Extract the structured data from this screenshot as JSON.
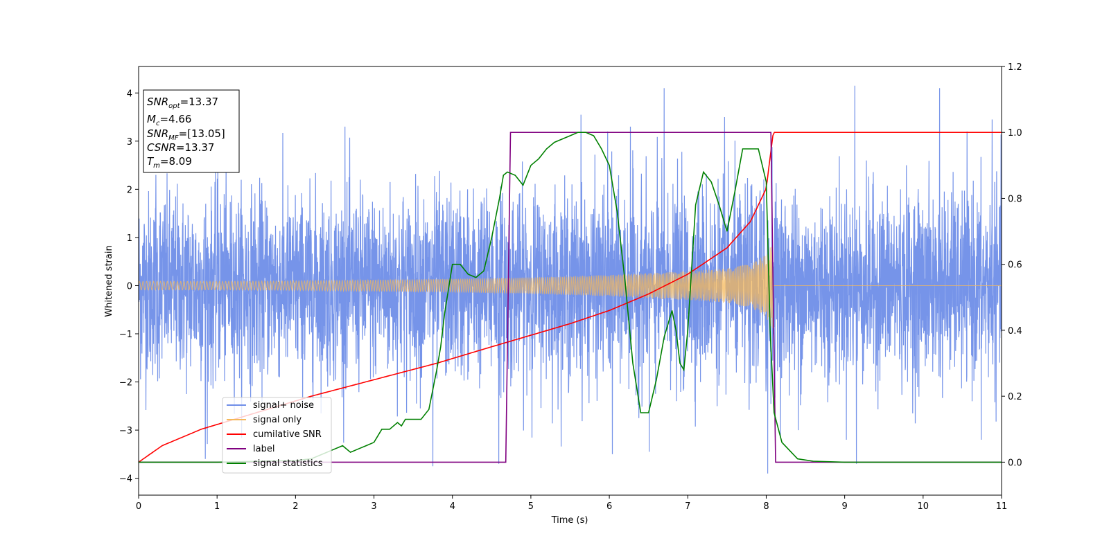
{
  "chart_data": {
    "type": "line",
    "xlabel": "Time (s)",
    "ylabel": "Whitened strain",
    "ylabel_right": "",
    "xlim": [
      0,
      11
    ],
    "ylim": [
      -4.35,
      4.55
    ],
    "ylim_right": [
      -0.1,
      1.2
    ],
    "xticks": [
      "0",
      "1",
      "2",
      "3",
      "4",
      "5",
      "6",
      "7",
      "8",
      "9",
      "10",
      "11"
    ],
    "yticks": [
      "−4",
      "−3",
      "−2",
      "−1",
      "0",
      "1",
      "2",
      "3",
      "4"
    ],
    "yticks_right": [
      "0.0",
      "0.2",
      "0.4",
      "0.6",
      "0.8",
      "1.0",
      "1.2"
    ],
    "grid": false,
    "legend_placement": "lower-left",
    "legend": [
      {
        "label": "signal+ noise",
        "color": "#6f8ee8"
      },
      {
        "label": "signal only",
        "color": "#f5b85a"
      },
      {
        "label": "cumilative SNR",
        "color": "#ff0000"
      },
      {
        "label": "label",
        "color": "#800080"
      },
      {
        "label": "signal statistics",
        "color": "#008000"
      }
    ],
    "info_box": {
      "snr_opt": {
        "base": "SNR",
        "sub": "opt",
        "value": "=13.37"
      },
      "mc": {
        "base": "M",
        "sub": "c",
        "value": "=4.66"
      },
      "snr_mf": {
        "base": "SNR",
        "sub": "MF",
        "value": "=[13.05]"
      },
      "csnr": {
        "base": "CSNR",
        "value": "=13.37"
      },
      "tm": {
        "base": "T",
        "sub": "m",
        "value": "=8.09"
      }
    },
    "series": [
      {
        "name": "signal+ noise",
        "axis": "left",
        "color": "#6f8ee8",
        "x_range": [
          0,
          11
        ],
        "noise_std": 1.0,
        "peaks": [
          [
            0.22,
            2.3
          ],
          [
            0.85,
            -3.6
          ],
          [
            1.01,
            3.0
          ],
          [
            2.63,
            3.3
          ],
          [
            3.75,
            -3.75
          ],
          [
            4.59,
            -3.7
          ],
          [
            5.64,
            3.55
          ],
          [
            5.98,
            3.2
          ],
          [
            6.04,
            -3.5
          ],
          [
            6.27,
            3.3
          ],
          [
            6.51,
            -3.45
          ],
          [
            6.7,
            4.1
          ],
          [
            7.47,
            3.5
          ],
          [
            8.02,
            -3.9
          ],
          [
            8.41,
            -3.0
          ],
          [
            9.13,
            4.15
          ],
          [
            9.15,
            -3.7
          ],
          [
            10.21,
            4.1
          ],
          [
            10.74,
            -3.2
          ],
          [
            10.88,
            3.45
          ]
        ]
      },
      {
        "name": "signal only",
        "axis": "left",
        "color": "#f5b85a",
        "description_points": [
          [
            0,
            0.09
          ],
          [
            1,
            0.09
          ],
          [
            2,
            0.1
          ],
          [
            3,
            0.12
          ],
          [
            4,
            0.14
          ],
          [
            5,
            0.17
          ],
          [
            6,
            0.22
          ],
          [
            7,
            0.3
          ],
          [
            7.5,
            0.36
          ],
          [
            7.8,
            0.45
          ],
          [
            8.0,
            0.65
          ],
          [
            8.09,
            0.95
          ]
        ],
        "zero_after": 8.09
      },
      {
        "name": "cumilative SNR",
        "axis": "right",
        "color": "#ff0000",
        "x": [
          0,
          0.3,
          0.8,
          1.5,
          2.2,
          3.0,
          3.8,
          4.5,
          5.0,
          5.5,
          6.0,
          6.5,
          7.0,
          7.5,
          7.8,
          8.0,
          8.09,
          11
        ],
        "y": [
          0.0,
          0.05,
          0.1,
          0.15,
          0.2,
          0.25,
          0.3,
          0.35,
          0.385,
          0.42,
          0.46,
          0.51,
          0.57,
          0.65,
          0.73,
          0.83,
          1.0,
          1.0
        ]
      },
      {
        "name": "label",
        "axis": "right",
        "color": "#800080",
        "x": [
          0,
          4.68,
          4.74,
          8.06,
          8.12,
          11
        ],
        "y": [
          0,
          0,
          1,
          1,
          0,
          0
        ]
      },
      {
        "name": "signal statistics",
        "axis": "right",
        "color": "#008000",
        "x": [
          0,
          1.0,
          2.0,
          2.2,
          2.4,
          2.5,
          2.6,
          2.7,
          2.8,
          2.9,
          3.0,
          3.1,
          3.2,
          3.3,
          3.35,
          3.4,
          3.5,
          3.6,
          3.7,
          3.8,
          3.85,
          3.9,
          4.0,
          4.1,
          4.2,
          4.3,
          4.4,
          4.5,
          4.6,
          4.65,
          4.7,
          4.8,
          4.9,
          5.0,
          5.1,
          5.2,
          5.3,
          5.4,
          5.5,
          5.6,
          5.7,
          5.8,
          5.9,
          6.0,
          6.1,
          6.2,
          6.3,
          6.4,
          6.5,
          6.6,
          6.7,
          6.8,
          6.85,
          6.9,
          6.95,
          7.0,
          7.1,
          7.2,
          7.3,
          7.4,
          7.5,
          7.6,
          7.7,
          7.8,
          7.9,
          8.0,
          8.05,
          8.1,
          8.2,
          8.4,
          8.6,
          9.0,
          9.5,
          10.0,
          11.0
        ],
        "y": [
          0.0,
          0.0,
          0.005,
          0.01,
          0.03,
          0.04,
          0.05,
          0.03,
          0.04,
          0.05,
          0.06,
          0.1,
          0.1,
          0.12,
          0.11,
          0.13,
          0.13,
          0.13,
          0.16,
          0.28,
          0.35,
          0.45,
          0.6,
          0.6,
          0.57,
          0.56,
          0.58,
          0.68,
          0.8,
          0.87,
          0.88,
          0.87,
          0.84,
          0.9,
          0.92,
          0.95,
          0.97,
          0.98,
          0.99,
          1.0,
          1.0,
          0.99,
          0.95,
          0.9,
          0.76,
          0.55,
          0.3,
          0.15,
          0.15,
          0.25,
          0.38,
          0.46,
          0.4,
          0.3,
          0.28,
          0.4,
          0.78,
          0.88,
          0.85,
          0.78,
          0.7,
          0.82,
          0.95,
          0.95,
          0.95,
          0.85,
          0.4,
          0.15,
          0.06,
          0.01,
          0.003,
          0.0,
          0.0,
          0.0,
          0.0
        ]
      }
    ]
  }
}
